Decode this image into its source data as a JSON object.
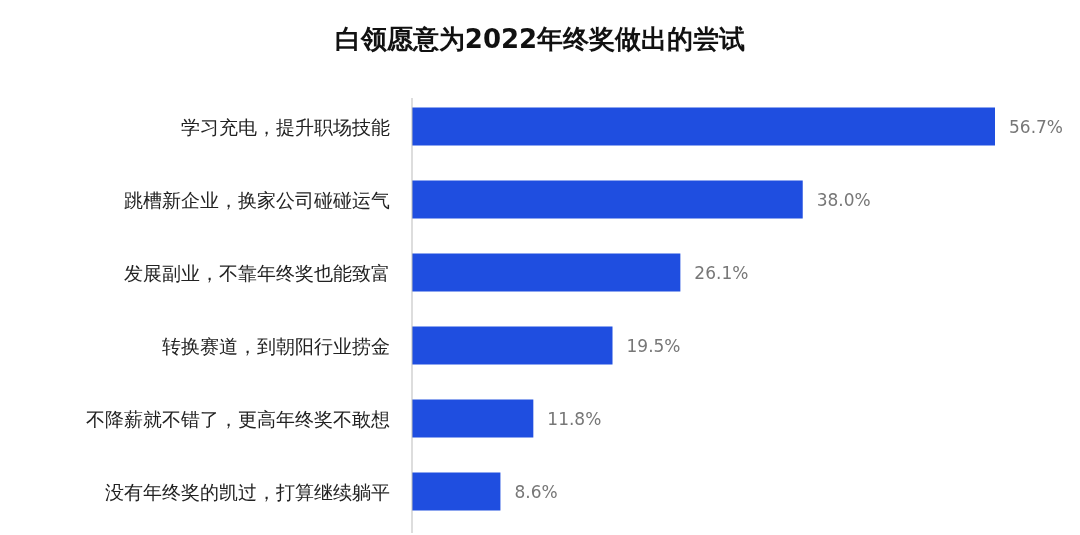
{
  "chart_data": {
    "type": "bar",
    "orientation": "horizontal",
    "title": "白领愿意为2022年终奖做出的尝试",
    "categories": [
      "学习充电，提升职场技能",
      "跳槽新企业，换家公司碰碰运气",
      "发展副业，不靠年终奖也能致富",
      "转换赛道，到朝阳行业捞金",
      "不降薪就不错了，更高年终奖不敢想",
      "没有年终奖的凯过，打算继续躺平"
    ],
    "values": [
      56.7,
      38.0,
      26.1,
      19.5,
      11.8,
      8.6
    ],
    "value_labels": [
      "56.7%",
      "38.0%",
      "26.1%",
      "19.5%",
      "11.8%",
      "8.6%"
    ],
    "color": "#1f4ee0",
    "grid": false
  }
}
